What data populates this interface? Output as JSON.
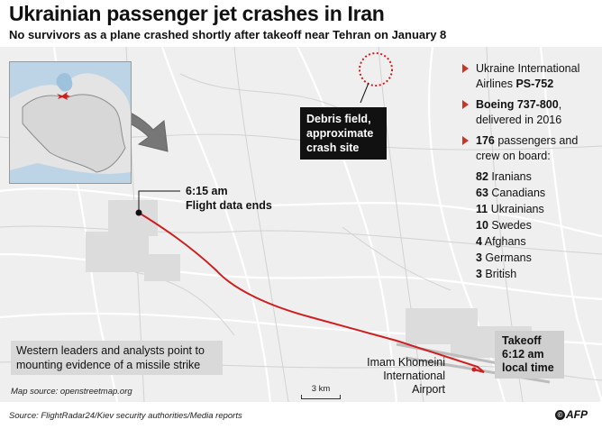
{
  "header": {
    "title": "Ukrainian passenger jet crashes in Iran",
    "subtitle": "No survivors as a plane crashed shortly after takeoff near Tehran on January 8"
  },
  "info": {
    "airline_text": "Ukraine International Airlines ",
    "airline_flight": "PS-752",
    "aircraft_model": "Boeing 737-800",
    "aircraft_delivered": ", delivered in 2016",
    "passengers_count": "176",
    "passengers_text": " passengers and crew on board:",
    "nationalities": [
      {
        "count": "82",
        "label": " Iranians"
      },
      {
        "count": "63",
        "label": " Canadians"
      },
      {
        "count": "11",
        "label": " Ukrainians"
      },
      {
        "count": "10",
        "label": " Swedes"
      },
      {
        "count": "4",
        "label": " Afghans"
      },
      {
        "count": "3",
        "label": " Germans"
      },
      {
        "count": "3",
        "label": " British"
      }
    ]
  },
  "annotations": {
    "debris_field": "Debris field, approximate crash site",
    "flight_end_time": "6:15 am",
    "flight_end_label": "Flight data ends",
    "takeoff_label": "Takeoff",
    "takeoff_time": "6:12 am",
    "takeoff_suffix": "local time",
    "airport_name": "Imam Khomeini International Airport",
    "missile_note": "Western leaders and analysts point to mounting evidence of a missile strike"
  },
  "map_source": "Map source: openstreetmap.org",
  "scale_label": "3 km",
  "footer": {
    "source": "Source: FlightRadar24/Kiev security authorities/Media reports",
    "agency": "AFP"
  },
  "colors": {
    "flight_path": "#cc1f1f",
    "debris_ring": "#cc1f1f",
    "bullet_marker": "#c0392b",
    "inset_water": "#bcd4e6",
    "inset_land": "#e4e4e4"
  },
  "icons": {
    "plane": "plane-icon",
    "inset_arrow": "arrow-icon"
  }
}
